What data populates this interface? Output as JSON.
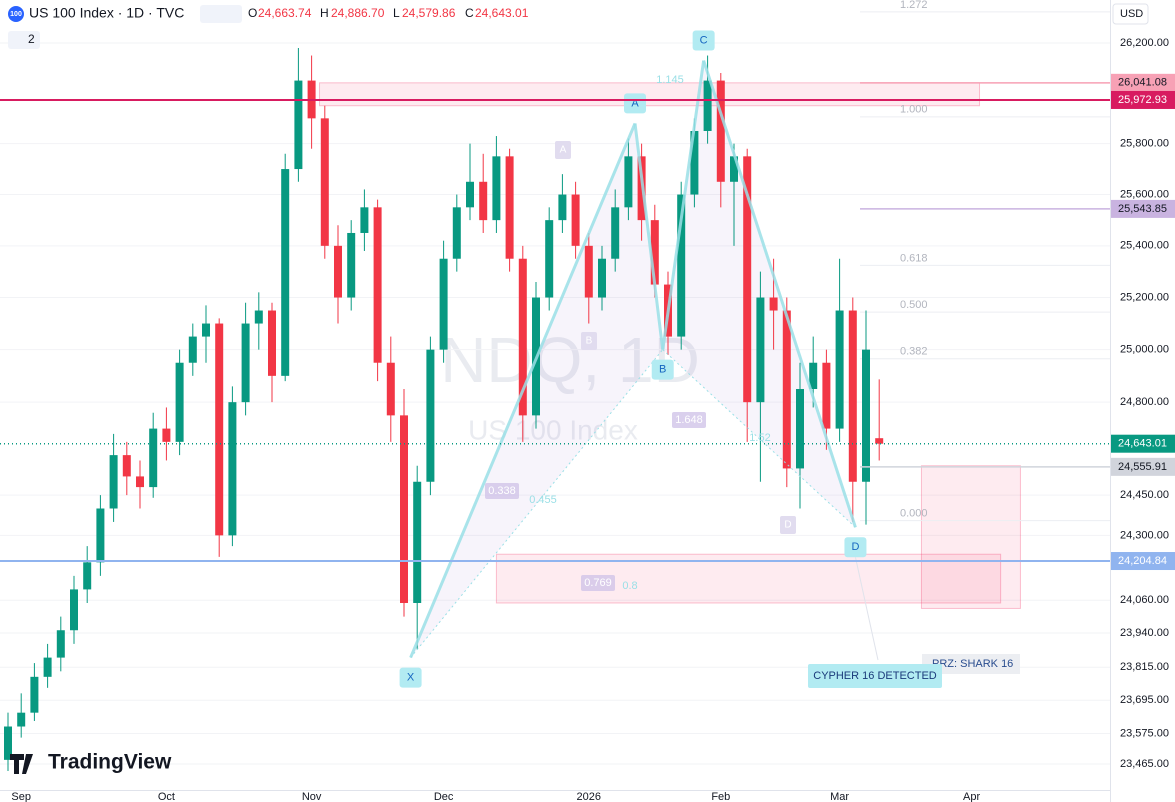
{
  "header": {
    "title": "US 100 Index · 1D · TVC",
    "o_label": "O",
    "open": "24,663.74",
    "h_label": "H",
    "high": "24,886.70",
    "l_label": "L",
    "low": "24,579.86",
    "c_label": "C",
    "close": "24,643.01",
    "count": "2",
    "currency": "USD",
    "logo": "TradingView",
    "symbol_icon": "100"
  },
  "chart_data": {
    "type": "candlestick",
    "log_scale": true,
    "grid": true,
    "watermark": "NDQ, 1D",
    "watermark_sub": "US 100 Index",
    "up_color": "#089981",
    "down_color": "#f23645",
    "categories": [
      null,
      "Sep",
      null,
      null,
      null,
      null,
      null,
      null,
      null,
      null,
      null,
      null,
      "Oct",
      null,
      null,
      null,
      null,
      null,
      null,
      null,
      null,
      null,
      null,
      "Nov",
      null,
      null,
      null,
      null,
      null,
      null,
      null,
      null,
      null,
      "Dec",
      null,
      null,
      null,
      null,
      null,
      null,
      null,
      null,
      null,
      null,
      "2026",
      null,
      null,
      null,
      null,
      null,
      null,
      null,
      null,
      null,
      "Feb",
      null,
      null,
      null,
      null,
      null,
      null,
      null,
      null,
      "Mar",
      null,
      null,
      null,
      null,
      null,
      null,
      null,
      null,
      null,
      "Apr",
      null,
      null,
      null,
      null,
      null,
      null,
      null,
      null,
      null,
      null
    ],
    "open": [
      23480,
      23600,
      23650,
      23780,
      23850,
      23950,
      24100,
      24200,
      24400,
      24600,
      24520,
      24480,
      24700,
      24650,
      24950,
      25050,
      25100,
      24300,
      24800,
      25100,
      25150,
      24900,
      25700,
      26050,
      25900,
      25400,
      25200,
      25450,
      25550,
      24950,
      24750,
      24050,
      24500,
      25000,
      25350,
      25550,
      25650,
      25500,
      25750,
      25350,
      24750,
      25200,
      25500,
      25600,
      25400,
      25200,
      25350,
      25550,
      25750,
      25500,
      25250,
      25050,
      25600,
      25850,
      26050,
      25650,
      25750,
      24800,
      25200,
      25150,
      24550,
      24850,
      24950,
      24700,
      25150,
      24500,
      24663.74,
      null,
      null,
      null,
      null,
      null,
      null,
      null,
      null,
      null,
      null,
      null,
      null,
      null,
      null,
      null,
      null,
      null
    ],
    "high": [
      23650,
      23720,
      23830,
      23900,
      24000,
      24150,
      24260,
      24450,
      24680,
      24650,
      24580,
      24760,
      24780,
      25000,
      25100,
      25170,
      25120,
      24860,
      25180,
      25220,
      25180,
      25760,
      26180,
      26150,
      25950,
      25480,
      25500,
      25620,
      25580,
      25050,
      24850,
      24560,
      25050,
      25420,
      25600,
      25800,
      25760,
      25830,
      25780,
      25400,
      25260,
      25550,
      25680,
      25650,
      25450,
      25400,
      25620,
      25820,
      25800,
      25560,
      25300,
      25650,
      25900,
      26150,
      26080,
      25800,
      25780,
      25300,
      25350,
      25200,
      24950,
      25050,
      25000,
      25350,
      25200,
      25150,
      24886.7,
      null,
      null,
      null,
      null,
      null,
      null,
      null,
      null,
      null,
      null,
      null,
      null,
      null,
      null,
      null,
      null,
      null
    ],
    "low": [
      23440,
      23560,
      23620,
      23740,
      23800,
      23900,
      24050,
      24150,
      24350,
      24450,
      24400,
      24440,
      24580,
      24600,
      24900,
      24950,
      24220,
      24260,
      24750,
      25000,
      24800,
      24880,
      25650,
      25780,
      25350,
      25100,
      25150,
      25380,
      24880,
      24650,
      24000,
      23880,
      24450,
      24950,
      25300,
      25500,
      25450,
      25450,
      25300,
      24650,
      24700,
      25150,
      25450,
      25350,
      25100,
      25150,
      25300,
      25500,
      25420,
      25200,
      24980,
      25000,
      25550,
      25800,
      25550,
      25400,
      24650,
      24500,
      25000,
      24480,
      24400,
      24780,
      24620,
      24650,
      24350,
      24340,
      24579.86,
      null,
      null,
      null,
      null,
      null,
      null,
      null,
      null,
      null,
      null,
      null,
      null,
      null,
      null,
      null,
      null,
      null
    ],
    "close": [
      23600,
      23650,
      23780,
      23850,
      23950,
      24100,
      24200,
      24400,
      24600,
      24520,
      24480,
      24700,
      24650,
      24950,
      25050,
      25100,
      24300,
      24800,
      25100,
      25150,
      24900,
      25700,
      26050,
      25900,
      25400,
      25200,
      25450,
      25550,
      24950,
      24750,
      24050,
      24500,
      25000,
      25350,
      25550,
      25650,
      25500,
      25750,
      25350,
      24750,
      25200,
      25500,
      25600,
      25400,
      25200,
      25350,
      25550,
      25750,
      25500,
      25250,
      25050,
      25600,
      25850,
      26050,
      25650,
      25750,
      24800,
      25200,
      25150,
      24550,
      24850,
      24950,
      24700,
      25150,
      24500,
      25000,
      24643.01,
      null,
      null,
      null,
      null,
      null,
      null,
      null,
      null,
      null,
      null,
      null,
      null,
      null,
      null,
      null,
      null,
      null
    ],
    "ylim": [
      23372,
      26373
    ],
    "yticks": [
      {
        "value": 26200,
        "label": "26,200.00"
      },
      {
        "value": 25800,
        "label": "25,800.00"
      },
      {
        "value": 25600,
        "label": "25,600.00"
      },
      {
        "value": 25400,
        "label": "25,400.00"
      },
      {
        "value": 25200,
        "label": "25,200.00"
      },
      {
        "value": 25000,
        "label": "25,000.00"
      },
      {
        "value": 24800,
        "label": "24,800.00"
      },
      {
        "value": 24450,
        "label": "24,450.00"
      },
      {
        "value": 24300,
        "label": "24,300.00"
      },
      {
        "value": 24060,
        "label": "24,060.00"
      },
      {
        "value": 23940,
        "label": "23,940.00"
      },
      {
        "value": 23815,
        "label": "23,815.00"
      },
      {
        "value": 23695,
        "label": "23,695.00"
      },
      {
        "value": 23575,
        "label": "23,575.00"
      },
      {
        "value": 23465,
        "label": "23,465.00"
      }
    ],
    "levels": [
      {
        "value": 26041.08,
        "label": "26,041.08",
        "color": "#f7a1b5"
      },
      {
        "value": 25972.93,
        "label": "25,972.93",
        "color": "#d81b60"
      },
      {
        "value": 25543.85,
        "label": "25,543.85",
        "color": "#c9b3e0"
      },
      {
        "value": 24643.01,
        "label": "24,643.01",
        "color": "#089981"
      },
      {
        "value": 24555.91,
        "label": "24,555.91",
        "color": "#d1d4dc"
      },
      {
        "value": 24204.84,
        "label": "24,204.84",
        "color": "#90b4ef"
      }
    ],
    "zones": [
      {
        "x0": 23.6,
        "x1": 73.6,
        "top": 26041.08,
        "bottom": 25950
      },
      {
        "x0": 37,
        "x1": 75.2,
        "top": 24230,
        "bottom": 24050
      },
      {
        "x0": 69.2,
        "x1": 76.7,
        "top": 24560,
        "bottom": 24030
      }
    ],
    "fib": [
      {
        "value": 1.272,
        "label": "1.272",
        "price": 26325
      },
      {
        "value": 1,
        "label": "1.000",
        "price": 25906
      },
      {
        "value": 0.618,
        "label": "0.618",
        "price": 25324
      },
      {
        "value": 0.5,
        "label": "0.500",
        "price": 25144
      },
      {
        "value": 0.382,
        "label": "0.382",
        "price": 24965
      },
      {
        "value": 0,
        "label": "0.000",
        "price": 24355
      }
    ],
    "pattern": [
      {
        "label": "X",
        "x": 30.5,
        "y": 23850
      },
      {
        "label": "A",
        "x": 47.5,
        "y": 25880
      },
      {
        "label": "B",
        "x": 49.6,
        "y": 25000
      },
      {
        "label": "C",
        "x": 52.7,
        "y": 26130
      },
      {
        "label": "D",
        "x": 64.2,
        "y": 24330
      }
    ],
    "ratios": [
      "0.338",
      "0.455",
      "1.648",
      "0.769",
      "0.8",
      "1.145",
      "1.52"
    ],
    "ghost_points": [
      "A",
      "B",
      "D"
    ],
    "annotations": [
      "CYPHER 16 DETECTED",
      "PRZ: SHARK 16"
    ]
  }
}
